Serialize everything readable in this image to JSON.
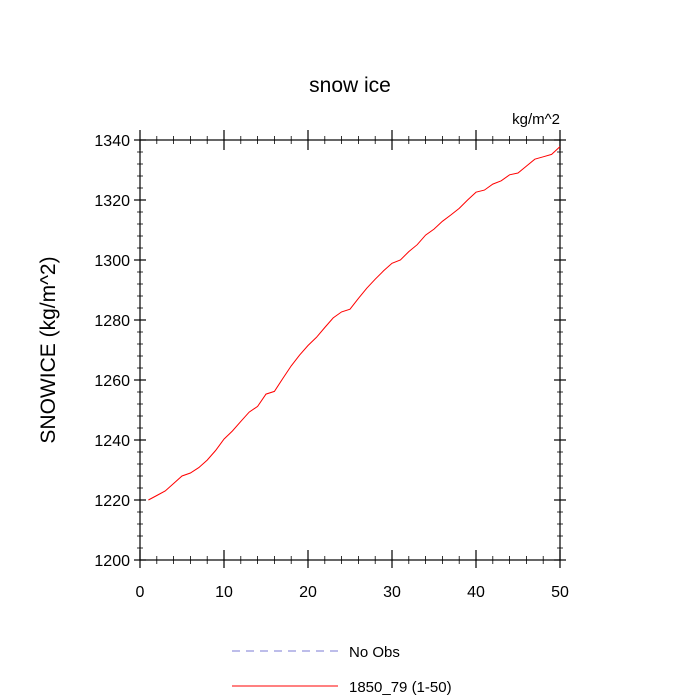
{
  "chart_data": {
    "type": "line",
    "title": "snow ice",
    "units_label": "kg/m^2",
    "ylabel": "SNOWICE  (kg/m^2)",
    "xlabel": "",
    "xlim": [
      0,
      50
    ],
    "ylim": [
      1200,
      1340
    ],
    "x_ticks": [
      0,
      10,
      20,
      30,
      40,
      50
    ],
    "y_ticks": [
      1200,
      1220,
      1240,
      1260,
      1280,
      1300,
      1320,
      1340
    ],
    "grid": false,
    "legend_placement": "bottom",
    "series": [
      {
        "name": "No Obs",
        "color": "#7b7bd6",
        "dash": "dashed",
        "x": [],
        "values": []
      },
      {
        "name": "1850_79 (1-50)",
        "color": "#ff0000",
        "dash": "solid",
        "x": [
          1,
          2,
          3,
          4,
          5,
          6,
          7,
          8,
          9,
          10,
          11,
          12,
          13,
          14,
          15,
          16,
          17,
          18,
          19,
          20,
          21,
          22,
          23,
          24,
          25,
          26,
          27,
          28,
          29,
          30,
          31,
          32,
          33,
          34,
          35,
          36,
          37,
          38,
          39,
          40,
          41,
          42,
          43,
          44,
          45,
          46,
          47,
          48,
          49,
          50
        ],
        "values": [
          1220,
          1221.5,
          1223,
          1225.5,
          1228,
          1229,
          1230.8,
          1233.3,
          1236.5,
          1240.3,
          1243,
          1246.2,
          1249.3,
          1251.2,
          1255.3,
          1256.2,
          1260.5,
          1264.7,
          1268.3,
          1271.5,
          1274.2,
          1277.5,
          1280.7,
          1282.7,
          1283.6,
          1287.2,
          1290.6,
          1293.6,
          1296.4,
          1298.9,
          1300,
          1302.8,
          1305.1,
          1308.3,
          1310.3,
          1312.9,
          1315,
          1317.2,
          1320,
          1322.6,
          1323.3,
          1325.3,
          1326.4,
          1328.4,
          1329,
          1331.3,
          1333.6,
          1334.4,
          1335.2,
          1337.8
        ]
      }
    ]
  }
}
